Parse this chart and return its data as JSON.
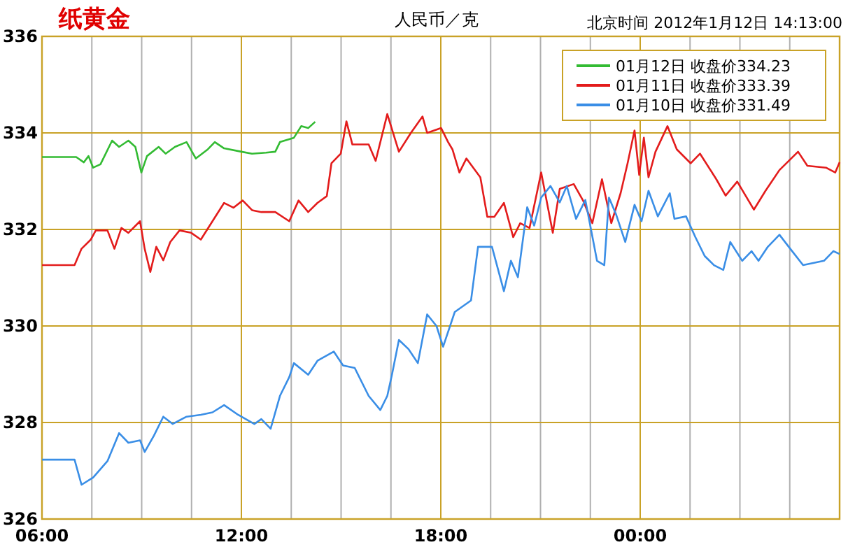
{
  "chart_data": {
    "type": "line",
    "title": "纸黄金",
    "subtitle": "人民币／克",
    "annotations": [
      "北京时间 2012年1月12日 14:13:00"
    ],
    "xlim": [
      6,
      30
    ],
    "ylim": [
      326,
      336
    ],
    "xticks": [
      {
        "value": 6,
        "label": "06:00"
      },
      {
        "value": 7.5,
        "label": null
      },
      {
        "value": 9,
        "label": null
      },
      {
        "value": 10.5,
        "label": null
      },
      {
        "value": 12,
        "label": "12:00"
      },
      {
        "value": 13.5,
        "label": null
      },
      {
        "value": 15,
        "label": null
      },
      {
        "value": 16.5,
        "label": null
      },
      {
        "value": 18,
        "label": "18:00"
      },
      {
        "value": 19.5,
        "label": null
      },
      {
        "value": 21,
        "label": null
      },
      {
        "value": 22.5,
        "label": null
      },
      {
        "value": 24,
        "label": "00:00"
      },
      {
        "value": 25.5,
        "label": null
      },
      {
        "value": 27,
        "label": null
      },
      {
        "value": 28.5,
        "label": null
      }
    ],
    "yticks": [
      326,
      328,
      330,
      332,
      334,
      336
    ],
    "grid": true,
    "legend": "top right",
    "marker": "none",
    "line_style": "solid",
    "series": [
      {
        "name": "01月12日 收盘价334.23",
        "color": "#33bb33",
        "x": [
          6,
          7.03,
          7.26,
          7.4,
          7.54,
          7.76,
          8.11,
          8.32,
          8.6,
          8.81,
          8.99,
          9.16,
          9.51,
          9.72,
          10,
          10.35,
          10.63,
          10.99,
          11.2,
          11.48,
          12,
          12.32,
          12.74,
          13.02,
          13.16,
          13.58,
          13.8,
          14.01,
          14.22
        ],
        "values": [
          333.5,
          333.5,
          333.39,
          333.52,
          333.28,
          333.35,
          333.84,
          333.71,
          333.84,
          333.71,
          333.18,
          333.52,
          333.71,
          333.57,
          333.71,
          333.81,
          333.47,
          333.66,
          333.81,
          333.68,
          333.61,
          333.57,
          333.59,
          333.61,
          333.81,
          333.9,
          334.14,
          334.1,
          334.23
        ]
      },
      {
        "name": "01月11日 收盘价333.39",
        "color": "#e31c1c",
        "x": [
          6,
          6.98,
          7.19,
          7.47,
          7.62,
          7.97,
          8.18,
          8.39,
          8.6,
          8.95,
          9.09,
          9.26,
          9.44,
          9.65,
          9.86,
          10.14,
          10.49,
          10.78,
          11.13,
          11.48,
          11.76,
          12.04,
          12.32,
          12.6,
          13.02,
          13.44,
          13.72,
          14.01,
          14.29,
          14.57,
          14.71,
          14.99,
          15.16,
          15.34,
          15.83,
          16.04,
          16.39,
          16.74,
          17.1,
          17.45,
          17.59,
          18.01,
          18.22,
          18.35,
          18.56,
          18.77,
          19.19,
          19.4,
          19.61,
          19.9,
          20.18,
          20.39,
          20.67,
          21.02,
          21.37,
          21.58,
          22,
          22.28,
          22.56,
          22.85,
          23.13,
          23.41,
          23.62,
          23.83,
          23.97,
          24.11,
          24.25,
          24.46,
          24.82,
          25.1,
          25.52,
          25.8,
          26.29,
          26.57,
          26.92,
          27.42,
          27.77,
          28.19,
          28.75,
          29.03,
          29.59,
          29.87,
          30
        ],
        "values": [
          331.26,
          331.26,
          331.6,
          331.79,
          331.98,
          331.98,
          331.6,
          332.03,
          331.93,
          332.17,
          331.6,
          331.12,
          331.64,
          331.36,
          331.74,
          331.98,
          331.93,
          331.79,
          332.17,
          332.55,
          332.45,
          332.6,
          332.4,
          332.36,
          332.36,
          332.17,
          332.6,
          332.36,
          332.55,
          332.69,
          333.37,
          333.57,
          334.24,
          333.76,
          333.76,
          333.42,
          334.39,
          333.61,
          334,
          334.34,
          334,
          334.1,
          333.81,
          333.66,
          333.18,
          333.47,
          333.08,
          332.26,
          332.26,
          332.55,
          331.84,
          332.13,
          332.03,
          333.18,
          331.93,
          332.84,
          332.94,
          332.6,
          332.13,
          333.04,
          332.13,
          332.75,
          333.37,
          334.05,
          333.13,
          333.9,
          333.08,
          333.61,
          334.14,
          333.66,
          333.37,
          333.57,
          333.04,
          332.7,
          332.99,
          332.41,
          332.8,
          333.23,
          333.61,
          333.32,
          333.28,
          333.18,
          333.39
        ]
      },
      {
        "name": "01月10日 收盘价331.49",
        "color": "#3a8ee6",
        "x": [
          6,
          6.98,
          7.19,
          7.54,
          7.97,
          8.32,
          8.6,
          8.95,
          9.09,
          9.37,
          9.65,
          9.93,
          10.35,
          10.78,
          11.13,
          11.48,
          11.9,
          12.39,
          12.6,
          12.88,
          13.16,
          13.44,
          13.58,
          14.01,
          14.29,
          14.78,
          15.06,
          15.41,
          15.83,
          16.18,
          16.39,
          16.53,
          16.74,
          17.03,
          17.31,
          17.59,
          17.87,
          18.07,
          18.42,
          18.91,
          19.12,
          19.54,
          19.9,
          20.11,
          20.32,
          20.6,
          20.81,
          21.02,
          21.3,
          21.58,
          21.79,
          22.07,
          22.35,
          22.7,
          22.92,
          23.06,
          23.27,
          23.55,
          23.83,
          24.04,
          24.25,
          24.53,
          24.89,
          25.03,
          25.38,
          25.66,
          25.94,
          26.22,
          26.5,
          26.71,
          27.07,
          27.35,
          27.56,
          27.84,
          28.19,
          28.47,
          28.9,
          29.18,
          29.53,
          29.81,
          30
        ],
        "values": [
          327.23,
          327.23,
          326.71,
          326.86,
          327.2,
          327.78,
          327.58,
          327.63,
          327.39,
          327.73,
          328.12,
          327.97,
          328.12,
          328.16,
          328.21,
          328.36,
          328.16,
          327.97,
          328.07,
          327.87,
          328.55,
          328.94,
          329.23,
          328.99,
          329.28,
          329.47,
          329.18,
          329.13,
          328.55,
          328.26,
          328.55,
          328.99,
          329.71,
          329.52,
          329.23,
          330.24,
          330,
          329.57,
          330.29,
          330.53,
          331.64,
          331.64,
          330.72,
          331.35,
          331.01,
          332.46,
          332.08,
          332.66,
          332.9,
          332.56,
          332.9,
          332.22,
          332.61,
          331.35,
          331.26,
          332.66,
          332.32,
          331.74,
          332.51,
          332.17,
          332.8,
          332.27,
          332.75,
          332.22,
          332.27,
          331.84,
          331.45,
          331.26,
          331.16,
          331.74,
          331.35,
          331.55,
          331.35,
          331.64,
          331.89,
          331.64,
          331.26,
          331.3,
          331.35,
          331.55,
          331.49
        ]
      }
    ]
  }
}
